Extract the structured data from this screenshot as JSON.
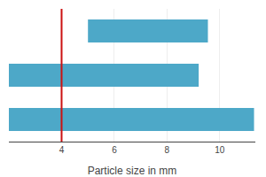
{
  "chart_data": {
    "type": "bar",
    "orientation": "horizontal",
    "categories": [
      null,
      null,
      null
    ],
    "values": [
      [
        2.0,
        11.3
      ],
      [
        2.0,
        9.2
      ],
      [
        5.0,
        9.55
      ]
    ],
    "color": "#4da8c8",
    "xlabel": "Particle size in mm",
    "xlim": [
      2.0,
      11.35
    ],
    "xticks": [
      4,
      6,
      8,
      10
    ],
    "grid": true,
    "tick_labels": "x",
    "vline": {
      "x": 4.0,
      "color": "#cc1111"
    }
  }
}
